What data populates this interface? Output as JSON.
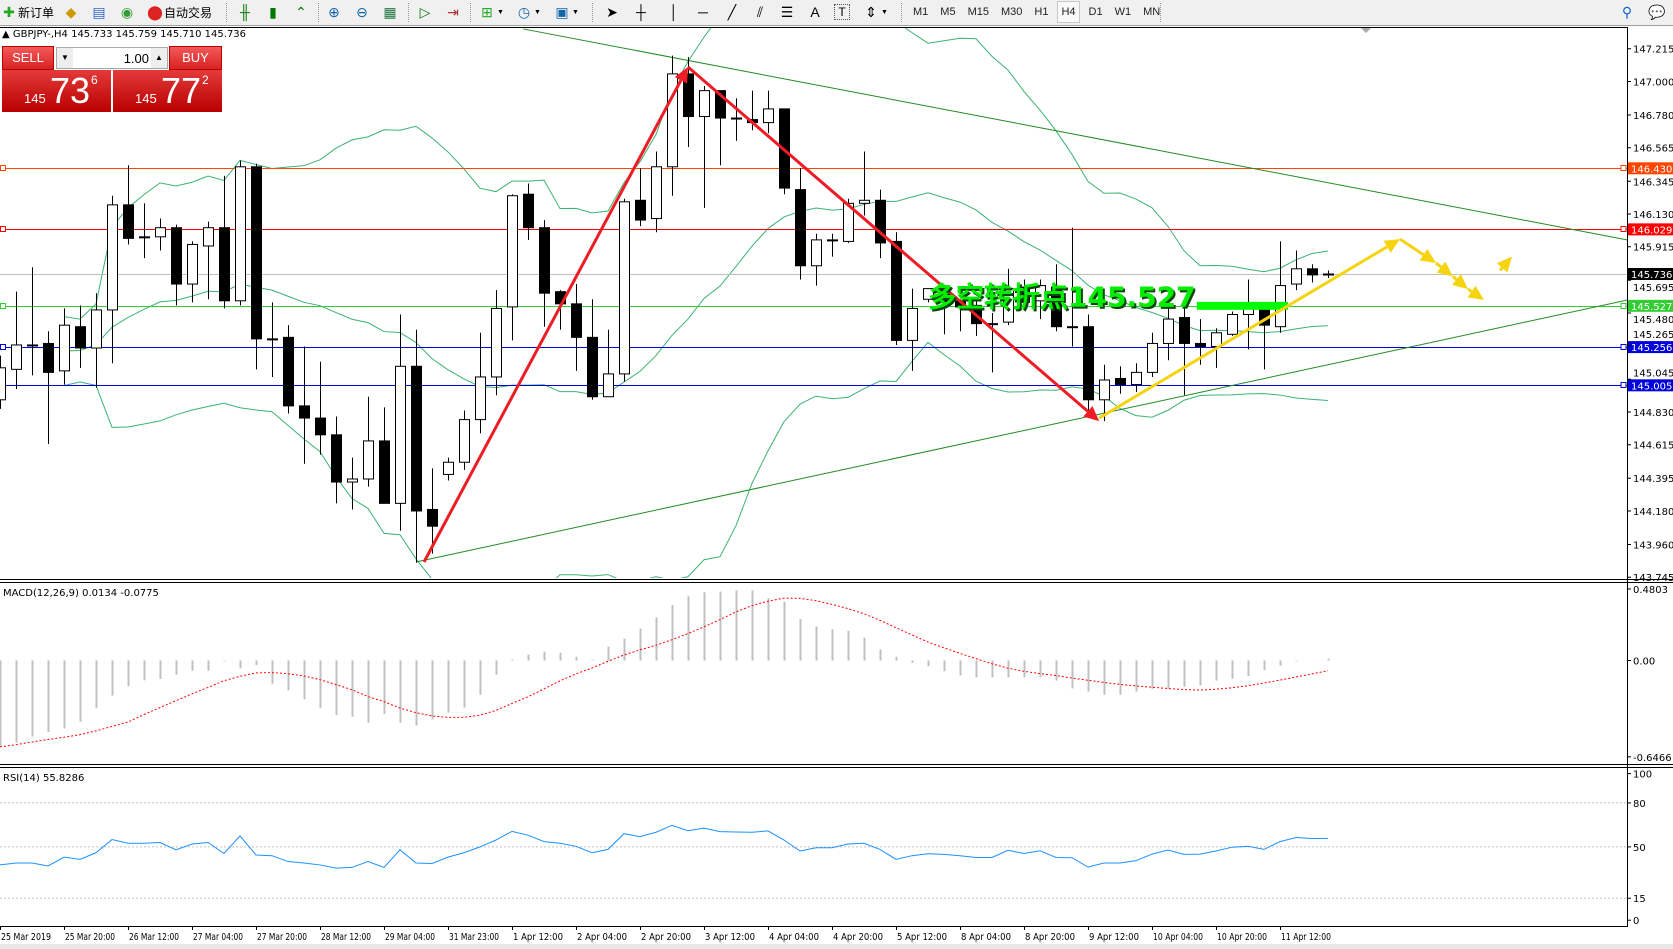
{
  "toolbar": {
    "new_order": "新订单",
    "auto_trading": "自动交易",
    "icons": [
      "new-order-icon",
      "meta-editor-icon",
      "terminal-icon",
      "signals-icon",
      "auto-trading-icon",
      "bar-chart-icon",
      "candlestick-icon",
      "line-chart-icon",
      "zoom-in-icon",
      "zoom-out-icon",
      "tile-windows-icon",
      "auto-scroll-icon",
      "chart-shift-icon",
      "indicators-icon",
      "periods-icon",
      "templates-icon",
      "cursor-icon",
      "crosshair-icon",
      "vertical-line-icon",
      "horizontal-line-icon",
      "trendline-icon",
      "fibonacci-channel-icon",
      "fibonacci-icon",
      "text-icon",
      "text-label-icon",
      "arrows-icon",
      "search-icon",
      "chat-icon"
    ],
    "text_tool": "A",
    "label_tool": "T",
    "periods": [
      "M1",
      "M5",
      "M15",
      "M30",
      "H1",
      "H4",
      "D1",
      "W1",
      "MN"
    ],
    "active_period": "H4"
  },
  "chart_header": {
    "symbol": "GBPJPY-,H4",
    "ohlc": "145.733 145.759 145.710 145.736"
  },
  "one_click": {
    "sell_label": "SELL",
    "buy_label": "BUY",
    "lot": "1.00",
    "bid": {
      "prefix": "145",
      "main": "73",
      "suffix": "6"
    },
    "ask": {
      "prefix": "145",
      "main": "77",
      "suffix": "2"
    }
  },
  "chart_data": {
    "type": "candlestick",
    "symbol": "GBPJPY-",
    "timeframe": "H4",
    "ylim": [
      143.745,
      147.215
    ],
    "candles": [
      [
        144.91,
        145.2,
        144.85,
        145.12
      ],
      [
        145.11,
        145.62,
        144.98,
        145.27
      ],
      [
        145.27,
        145.78,
        145.07,
        145.27
      ],
      [
        145.28,
        145.36,
        144.62,
        145.09
      ],
      [
        145.1,
        145.51,
        145.01,
        145.4
      ],
      [
        145.39,
        145.53,
        145.12,
        145.25
      ],
      [
        145.25,
        145.61,
        144.99,
        145.5
      ],
      [
        145.5,
        146.25,
        145.15,
        146.19
      ],
      [
        146.19,
        146.45,
        145.93,
        145.97
      ],
      [
        145.98,
        146.2,
        145.84,
        145.98
      ],
      [
        145.98,
        146.1,
        145.89,
        146.04
      ],
      [
        146.04,
        146.06,
        145.53,
        145.67
      ],
      [
        145.67,
        145.95,
        145.55,
        145.93
      ],
      [
        145.92,
        146.08,
        145.57,
        146.04
      ],
      [
        146.04,
        146.38,
        145.51,
        145.56
      ],
      [
        145.56,
        146.48,
        145.53,
        146.44
      ],
      [
        146.44,
        146.46,
        145.11,
        145.31
      ],
      [
        145.31,
        145.55,
        145.06,
        145.31
      ],
      [
        145.32,
        145.4,
        144.82,
        144.87
      ],
      [
        144.87,
        145.26,
        144.49,
        144.79
      ],
      [
        144.79,
        145.16,
        144.55,
        144.68
      ],
      [
        144.68,
        144.8,
        144.23,
        144.37
      ],
      [
        144.37,
        144.53,
        144.19,
        144.39
      ],
      [
        144.39,
        144.93,
        144.34,
        144.64
      ],
      [
        144.64,
        144.86,
        144.23,
        144.23
      ],
      [
        144.23,
        145.47,
        144.05,
        145.13
      ],
      [
        145.13,
        145.37,
        143.84,
        144.18
      ],
      [
        144.19,
        144.46,
        143.9,
        144.08
      ],
      [
        144.42,
        144.53,
        144.38,
        144.5
      ],
      [
        144.5,
        144.84,
        144.45,
        144.78
      ],
      [
        144.78,
        145.35,
        144.69,
        145.06
      ],
      [
        145.06,
        145.63,
        144.94,
        145.51
      ],
      [
        145.52,
        146.26,
        145.3,
        146.25
      ],
      [
        146.26,
        146.33,
        145.96,
        146.04
      ],
      [
        146.04,
        146.09,
        145.39,
        145.61
      ],
      [
        145.62,
        145.63,
        145.37,
        145.54
      ],
      [
        145.54,
        145.67,
        145.1,
        145.32
      ],
      [
        145.32,
        145.57,
        144.91,
        144.93
      ],
      [
        144.93,
        145.37,
        144.93,
        145.08
      ],
      [
        145.08,
        146.23,
        145.03,
        146.21
      ],
      [
        146.22,
        146.43,
        146.05,
        146.09
      ],
      [
        146.1,
        146.54,
        146.01,
        146.44
      ],
      [
        146.44,
        147.17,
        146.25,
        147.05
      ],
      [
        147.05,
        147.16,
        146.57,
        146.77
      ],
      [
        146.77,
        146.97,
        146.17,
        146.94
      ],
      [
        146.94,
        146.94,
        146.45,
        146.76
      ],
      [
        146.76,
        146.89,
        146.61,
        146.76
      ],
      [
        146.75,
        146.94,
        146.68,
        146.73
      ],
      [
        146.73,
        146.94,
        146.66,
        146.82
      ],
      [
        146.82,
        146.82,
        146.26,
        146.3
      ],
      [
        146.29,
        146.43,
        145.7,
        145.79
      ],
      [
        145.79,
        146.0,
        145.66,
        145.96
      ],
      [
        145.96,
        146.0,
        145.85,
        145.96
      ],
      [
        145.95,
        146.23,
        145.94,
        146.2
      ],
      [
        146.2,
        146.54,
        146.12,
        146.22
      ],
      [
        146.22,
        146.29,
        145.84,
        145.94
      ],
      [
        145.95,
        146.01,
        145.27,
        145.3
      ],
      [
        145.3,
        145.64,
        145.1,
        145.51
      ],
      [
        145.57,
        145.64,
        145.55,
        145.64
      ],
      [
        145.64,
        145.64,
        145.34,
        145.55
      ],
      [
        145.56,
        145.57,
        145.36,
        145.52
      ],
      [
        145.53,
        145.56,
        145.33,
        145.41
      ],
      [
        145.41,
        145.48,
        145.09,
        145.41
      ],
      [
        145.42,
        145.77,
        145.4,
        145.64
      ],
      [
        145.65,
        145.7,
        145.53,
        145.55
      ],
      [
        145.56,
        145.7,
        145.44,
        145.66
      ],
      [
        145.65,
        145.8,
        145.36,
        145.39
      ],
      [
        145.39,
        146.04,
        145.26,
        145.39
      ],
      [
        145.39,
        145.47,
        144.84,
        144.91
      ],
      [
        144.91,
        145.14,
        144.77,
        145.04
      ],
      [
        145.05,
        145.13,
        144.95,
        145.01
      ],
      [
        145.01,
        145.15,
        144.96,
        145.09
      ],
      [
        145.09,
        145.35,
        145.06,
        145.28
      ],
      [
        145.28,
        145.58,
        145.17,
        145.44
      ],
      [
        145.45,
        145.57,
        144.94,
        145.28
      ],
      [
        145.28,
        145.44,
        145.14,
        145.26
      ],
      [
        145.26,
        145.38,
        145.12,
        145.35
      ],
      [
        145.34,
        145.49,
        145.33,
        145.47
      ],
      [
        145.47,
        145.7,
        145.24,
        145.51
      ],
      [
        145.53,
        145.53,
        145.11,
        145.4
      ],
      [
        145.39,
        145.95,
        145.35,
        145.66
      ],
      [
        145.67,
        145.89,
        145.63,
        145.77
      ],
      [
        145.77,
        145.8,
        145.68,
        145.73
      ],
      [
        145.733,
        145.759,
        145.71,
        145.736
      ]
    ],
    "x_ticks": [
      {
        "bar": 0,
        "label": "25 Mar 2019"
      },
      {
        "bar": 4,
        "label": "25 Mar 20:00"
      },
      {
        "bar": 8,
        "label": "26 Mar 12:00"
      },
      {
        "bar": 12,
        "label": "27 Mar 04:00"
      },
      {
        "bar": 16,
        "label": "27 Mar 20:00"
      },
      {
        "bar": 20,
        "label": "28 Mar 12:00"
      },
      {
        "bar": 24,
        "label": "29 Mar 04:00"
      },
      {
        "bar": 28,
        "label": "31 Mar 23:00"
      },
      {
        "bar": 32,
        "label": "1 Apr 12:00"
      },
      {
        "bar": 36,
        "label": "2 Apr 04:00"
      },
      {
        "bar": 40,
        "label": "2 Apr 20:00"
      },
      {
        "bar": 44,
        "label": "3 Apr 12:00"
      },
      {
        "bar": 48,
        "label": "4 Apr 04:00"
      },
      {
        "bar": 52,
        "label": "4 Apr 20:00"
      },
      {
        "bar": 56,
        "label": "5 Apr 12:00"
      },
      {
        "bar": 60,
        "label": "8 Apr 04:00"
      },
      {
        "bar": 64,
        "label": "8 Apr 20:00"
      },
      {
        "bar": 68,
        "label": "9 Apr 12:00"
      },
      {
        "bar": 72,
        "label": "10 Apr 04:00"
      },
      {
        "bar": 76,
        "label": "10 Apr 20:00"
      },
      {
        "bar": 80,
        "label": "11 Apr 12:00"
      }
    ],
    "y_ticks": [
      "147.215",
      "147.000",
      "146.780",
      "146.565",
      "146.345",
      "146.130",
      "145.915",
      "145.695",
      "145.480",
      "145.265",
      "145.045",
      "144.830",
      "144.615",
      "144.395",
      "144.180",
      "143.960",
      "143.745"
    ],
    "horizontal_lines": [
      {
        "price": 146.43,
        "label": "146.430",
        "color": "#ff4500"
      },
      {
        "price": 146.029,
        "label": "146.029",
        "color": "#ff0000"
      },
      {
        "price": 145.736,
        "label": "145.736",
        "color": "#c0c0c0",
        "tag_color": "#000000",
        "is_bid": true
      },
      {
        "price": 145.527,
        "label": "145.527",
        "color": "#32cd32"
      },
      {
        "price": 145.256,
        "label": "145.256",
        "color": "#0000dd"
      },
      {
        "price": 145.005,
        "label": "145.005",
        "color": "#0000dd"
      }
    ],
    "trendlines": [
      {
        "from": {
          "bar": 32.7,
          "price": 147.345
        },
        "to": {
          "bar": 101.7,
          "price": 145.96
        },
        "color": "#228b22"
      },
      {
        "from": {
          "bar": 26,
          "price": 143.845
        },
        "to": {
          "bar": 101.7,
          "price": 145.565
        },
        "color": "#228b22"
      }
    ],
    "arrows": [
      {
        "color": "#ee1c25",
        "points": [
          {
            "bar": 26.5,
            "price": 143.845
          },
          {
            "bar": 43,
            "price": 147.095
          }
        ]
      },
      {
        "color": "#ee1c25",
        "points": [
          {
            "bar": 43,
            "price": 147.095
          },
          {
            "bar": 68.7,
            "price": 144.77
          }
        ]
      },
      {
        "color": "#f5d40f",
        "points": [
          {
            "bar": 68.7,
            "price": 144.79
          },
          {
            "bar": 87.5,
            "price": 145.965
          }
        ]
      },
      {
        "color": "#f5d40f",
        "points": [
          {
            "bar": 87.5,
            "price": 145.965
          },
          {
            "bar": 89.75,
            "price": 145.808
          }
        ]
      },
      {
        "color": "#f5d40f",
        "points": [
          {
            "bar": 89.75,
            "price": 145.808
          },
          {
            "bar": 90.8,
            "price": 145.72
          }
        ]
      },
      {
        "color": "#f5d40f",
        "points": [
          {
            "bar": 90.8,
            "price": 145.72
          },
          {
            "bar": 91.75,
            "price": 145.637
          }
        ]
      },
      {
        "color": "#f5d40f",
        "points": [
          {
            "bar": 91.75,
            "price": 145.637
          },
          {
            "bar": 92.75,
            "price": 145.565
          }
        ]
      },
      {
        "color": "#f5d40f",
        "points": [
          {
            "bar": 93.75,
            "price": 145.76
          },
          {
            "bar": 94.5,
            "price": 145.85
          }
        ]
      }
    ],
    "level_bar": {
      "from_bar": 74.8,
      "to_bar": 80.5,
      "price": 145.527,
      "color": "#00ff00"
    },
    "annotation": {
      "text": "多空转折点145.527",
      "bar": 58,
      "price": 145.6,
      "color": "#00ee00"
    },
    "bollinger": {
      "period": 20,
      "deviation": 2,
      "color": "#3cb371"
    },
    "macd": {
      "legend": "MACD(12,26,9) 0.0134 -0.0775",
      "y_ticks": [
        "0.4803",
        "0.00",
        "-0.6466"
      ],
      "histogram_color": "#c0c0c0",
      "signal_color": "#ff0000",
      "histogram": [
        -0.58,
        -0.55,
        -0.51,
        -0.48,
        -0.456,
        -0.41,
        -0.32,
        -0.235,
        -0.174,
        -0.133,
        -0.124,
        -0.095,
        -0.068,
        -0.068,
        -0.005,
        -0.052,
        -0.03,
        -0.156,
        -0.2,
        -0.26,
        -0.32,
        -0.366,
        -0.377,
        -0.418,
        -0.359,
        -0.418,
        -0.436,
        -0.395,
        -0.35,
        -0.316,
        -0.23,
        -0.095,
        0.007,
        0.04,
        0.059,
        0.052,
        0.025,
        0.005,
        0.093,
        0.147,
        0.214,
        0.289,
        0.372,
        0.431,
        0.458,
        0.463,
        0.47,
        0.47,
        0.418,
        0.395,
        0.278,
        0.228,
        0.21,
        0.199,
        0.153,
        0.074,
        0.025,
        -0.016,
        -0.038,
        -0.072,
        -0.1,
        -0.113,
        -0.113,
        -0.113,
        -0.113,
        -0.113,
        -0.135,
        -0.187,
        -0.208,
        -0.23,
        -0.23,
        -0.208,
        -0.19,
        -0.19,
        -0.176,
        -0.167,
        -0.135,
        -0.122,
        -0.104,
        -0.065,
        -0.034,
        -0.005,
        0.0,
        0.0134
      ]
    },
    "rsi": {
      "legend": "RSI(14) 55.8286",
      "y_ticks": [
        "100",
        "80",
        "50",
        "15",
        "0"
      ],
      "levels": [
        80,
        50,
        15
      ],
      "color": "#1e90ff",
      "values": [
        37.7,
        39,
        39,
        37,
        43,
        41.5,
        46,
        55,
        52.5,
        52.5,
        53,
        48,
        52,
        53,
        45.5,
        57.5,
        44.5,
        44,
        40,
        39,
        37.7,
        35.5,
        36,
        40,
        36,
        48,
        39,
        38.7,
        43,
        46,
        50,
        54.7,
        60.6,
        58,
        53.6,
        52.5,
        50.4,
        46,
        48.3,
        59,
        57,
        60,
        64.7,
        61,
        62.8,
        60.4,
        60.2,
        60,
        60.9,
        54.7,
        47.2,
        49.4,
        49.4,
        52,
        52.5,
        48.3,
        41.5,
        44,
        45.3,
        44.9,
        44,
        42.8,
        42.8,
        47.7,
        45.5,
        47.4,
        42.8,
        42.6,
        36.2,
        39,
        39,
        40.6,
        45.1,
        47.9,
        44.9,
        45.1,
        47.2,
        49.8,
        50.4,
        48.3,
        53.6,
        56.4,
        55.7,
        55.8286
      ]
    }
  }
}
